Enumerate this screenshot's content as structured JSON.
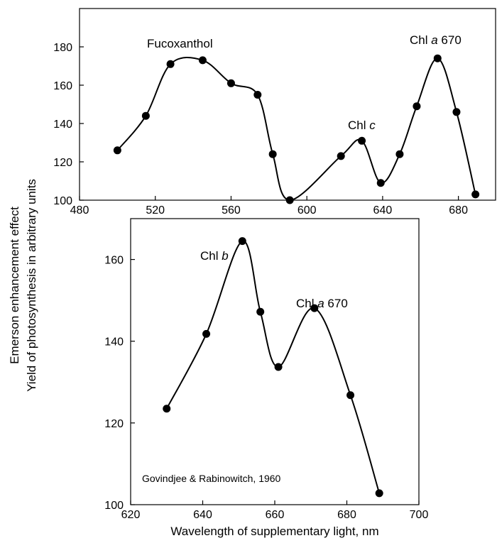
{
  "ylabel_line1": "Emerson enhancement effect",
  "ylabel_line2": "Yield of photosynthesis in arbitrary units",
  "xlabel": "Wavelength of supplementary light, nm",
  "source_note": "Govindjee & Rabinowitch, 1960",
  "chart_data": [
    {
      "type": "line",
      "xlim": [
        480,
        700
      ],
      "ylim": [
        100,
        200
      ],
      "xticks": [
        480,
        520,
        560,
        600,
        640,
        680
      ],
      "yticks": [
        100,
        120,
        140,
        160,
        180
      ],
      "grid": false,
      "x": [
        500,
        515,
        528,
        545,
        560,
        574,
        582,
        591,
        618,
        629,
        639,
        649,
        658,
        669,
        679,
        689
      ],
      "y": [
        126,
        144,
        171,
        173,
        161,
        155,
        124,
        100,
        123,
        131,
        109,
        124,
        149,
        174,
        146,
        103
      ],
      "annotations": [
        {
          "text": "Fucoxanthol"
        },
        {
          "prefix": "Chl ",
          "italic": "c",
          "suffix": ""
        },
        {
          "prefix": "Chl ",
          "italic": "a",
          "suffix": " 670"
        }
      ]
    },
    {
      "type": "line",
      "xlim": [
        620,
        700
      ],
      "ylim": [
        100,
        170
      ],
      "xticks": [
        620,
        640,
        660,
        680,
        700
      ],
      "yticks": [
        100,
        120,
        140,
        160
      ],
      "grid": false,
      "x": [
        630,
        641,
        651,
        656,
        661,
        671,
        681,
        689
      ],
      "y": [
        123.5,
        141.8,
        164.5,
        147.2,
        133.7,
        148.1,
        126.8,
        102.8
      ],
      "annotations": [
        {
          "prefix": "Chl ",
          "italic": "b",
          "suffix": ""
        },
        {
          "prefix": "Chl ",
          "italic": "a",
          "suffix": " 670"
        }
      ]
    }
  ]
}
